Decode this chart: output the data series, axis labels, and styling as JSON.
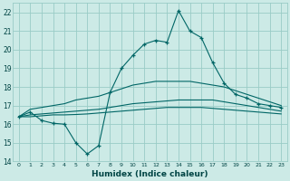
{
  "xlabel": "Humidex (Indice chaleur)",
  "bg_color": "#cceae6",
  "grid_color": "#99ccc6",
  "line_color": "#006666",
  "xlim": [
    -0.5,
    23.5
  ],
  "ylim": [
    14,
    22.5
  ],
  "yticks": [
    14,
    15,
    16,
    17,
    18,
    19,
    20,
    21,
    22
  ],
  "xticks": [
    0,
    1,
    2,
    3,
    4,
    5,
    6,
    7,
    8,
    9,
    10,
    11,
    12,
    13,
    14,
    15,
    16,
    17,
    18,
    19,
    20,
    21,
    22,
    23
  ],
  "series": [
    {
      "x": [
        0,
        1,
        2,
        3,
        4,
        5,
        6,
        7,
        8,
        9,
        10,
        11,
        12,
        13,
        14,
        15,
        16,
        17,
        18,
        19,
        20,
        21,
        22,
        23
      ],
      "y": [
        16.4,
        16.65,
        16.2,
        16.05,
        16.0,
        15.0,
        14.4,
        14.85,
        17.7,
        19.0,
        19.7,
        20.3,
        20.5,
        20.4,
        22.1,
        21.0,
        20.65,
        19.3,
        18.2,
        17.6,
        17.4,
        17.1,
        17.0,
        16.9
      ],
      "has_markers": true
    },
    {
      "x": [
        0,
        1,
        2,
        3,
        4,
        5,
        6,
        7,
        8,
        9,
        10,
        11,
        12,
        13,
        14,
        15,
        16,
        17,
        18,
        19,
        20,
        21,
        22,
        23
      ],
      "y": [
        16.4,
        16.8,
        16.9,
        17.0,
        17.1,
        17.3,
        17.4,
        17.5,
        17.7,
        17.9,
        18.1,
        18.2,
        18.3,
        18.3,
        18.3,
        18.3,
        18.2,
        18.1,
        18.0,
        17.8,
        17.6,
        17.4,
        17.2,
        17.0
      ],
      "has_markers": false
    },
    {
      "x": [
        0,
        1,
        2,
        3,
        4,
        5,
        6,
        7,
        8,
        9,
        10,
        11,
        12,
        13,
        14,
        15,
        16,
        17,
        18,
        19,
        20,
        21,
        22,
        23
      ],
      "y": [
        16.4,
        16.5,
        16.55,
        16.6,
        16.65,
        16.7,
        16.75,
        16.8,
        16.9,
        17.0,
        17.1,
        17.15,
        17.2,
        17.25,
        17.3,
        17.3,
        17.3,
        17.3,
        17.2,
        17.1,
        17.0,
        16.9,
        16.8,
        16.7
      ],
      "has_markers": false
    },
    {
      "x": [
        0,
        1,
        2,
        3,
        4,
        5,
        6,
        7,
        8,
        9,
        10,
        11,
        12,
        13,
        14,
        15,
        16,
        17,
        18,
        19,
        20,
        21,
        22,
        23
      ],
      "y": [
        16.4,
        16.4,
        16.45,
        16.5,
        16.5,
        16.52,
        16.55,
        16.6,
        16.65,
        16.7,
        16.75,
        16.8,
        16.85,
        16.9,
        16.9,
        16.9,
        16.9,
        16.85,
        16.8,
        16.75,
        16.7,
        16.65,
        16.6,
        16.55
      ],
      "has_markers": false
    }
  ]
}
